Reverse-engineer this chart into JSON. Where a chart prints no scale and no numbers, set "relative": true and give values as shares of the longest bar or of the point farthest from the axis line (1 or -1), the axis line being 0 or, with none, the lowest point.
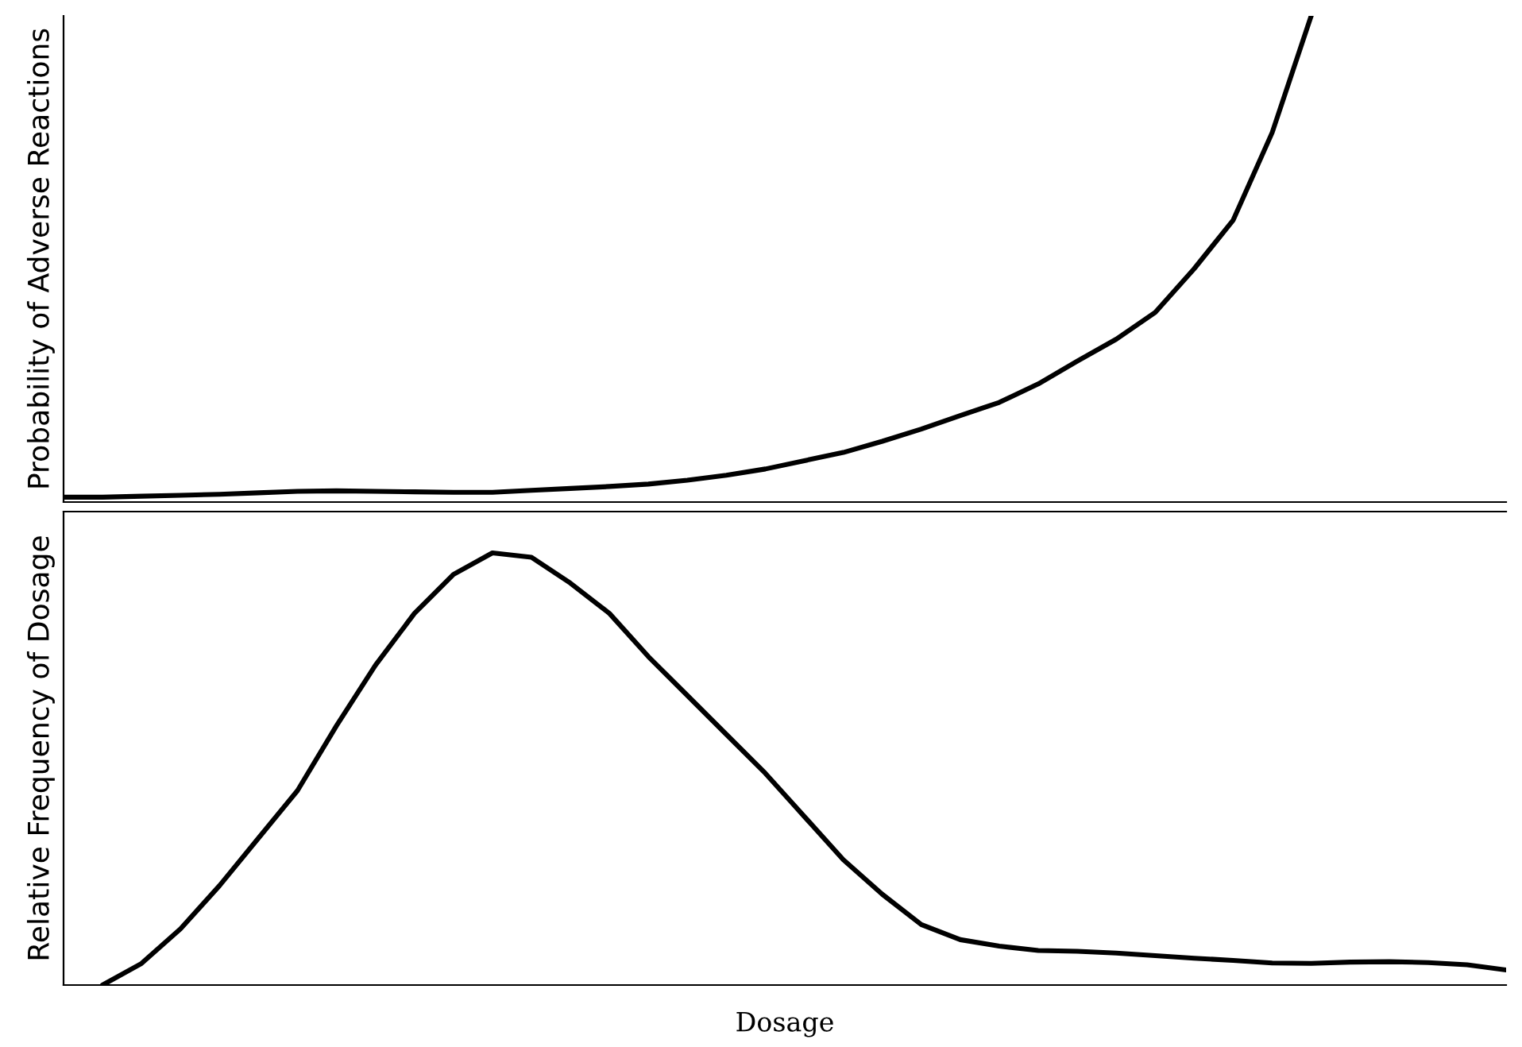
{
  "chart_data": [
    {
      "type": "line",
      "relative": true,
      "ylabel": "Probability of Adverse Reactions",
      "categories": [
        null,
        null,
        null,
        null,
        null,
        null,
        null,
        null,
        null,
        null,
        null,
        null,
        null,
        null,
        null,
        null,
        null,
        null,
        null,
        null,
        null,
        null,
        null,
        null,
        null,
        null,
        null,
        null,
        null,
        null,
        null,
        null,
        null,
        null,
        null,
        null,
        null,
        null
      ],
      "tick_labels": false,
      "grid": false,
      "marker": "none",
      "line_style": "solid",
      "series": [
        {
          "color": "#000000",
          "values": [
            0.01,
            0.01,
            0.012,
            0.014,
            0.016,
            0.019,
            0.022,
            0.023,
            0.022,
            0.021,
            0.02,
            0.02,
            0.024,
            0.028,
            0.032,
            0.037,
            0.045,
            0.055,
            0.068,
            0.085,
            0.102,
            0.125,
            0.15,
            0.178,
            0.205,
            0.243,
            0.29,
            0.335,
            0.39,
            0.48,
            0.58,
            0.76,
            1.0,
            null,
            null,
            null,
            null,
            null
          ]
        }
      ]
    },
    {
      "type": "line",
      "relative": true,
      "ylabel": "Relative Frequency of Dosage",
      "xlabel": "Dosage",
      "categories": [
        null,
        null,
        null,
        null,
        null,
        null,
        null,
        null,
        null,
        null,
        null,
        null,
        null,
        null,
        null,
        null,
        null,
        null,
        null,
        null,
        null,
        null,
        null,
        null,
        null,
        null,
        null,
        null,
        null,
        null,
        null,
        null,
        null,
        null,
        null,
        null,
        null,
        null
      ],
      "tick_labels": false,
      "grid": false,
      "marker": "none",
      "line_style": "solid",
      "series": [
        {
          "color": "#000000",
          "values": [
            null,
            0.0,
            0.05,
            0.13,
            0.23,
            0.34,
            0.45,
            0.6,
            0.74,
            0.86,
            0.95,
            1.0,
            0.99,
            0.93,
            0.86,
            0.76,
            0.67,
            0.58,
            0.49,
            0.39,
            0.29,
            0.21,
            0.14,
            0.105,
            0.09,
            0.08,
            0.078,
            0.074,
            0.068,
            0.062,
            0.057,
            0.051,
            0.05,
            0.053,
            0.054,
            0.052,
            0.047,
            0.035
          ]
        }
      ]
    }
  ]
}
